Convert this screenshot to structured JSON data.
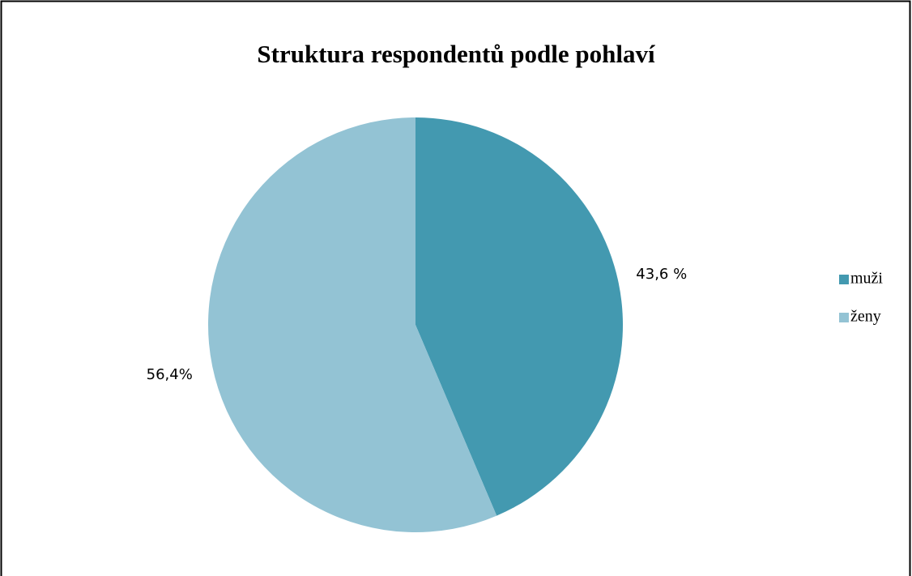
{
  "chart_data": {
    "type": "pie",
    "title": "Struktura respondentů podle pohlaví",
    "categories": [
      "muži",
      "ženy"
    ],
    "values": [
      43.6,
      56.4
    ],
    "value_labels": [
      "43,6 %",
      "56,4%"
    ],
    "colors": [
      "#4399b0",
      "#93c3d4"
    ],
    "legend": "right"
  }
}
